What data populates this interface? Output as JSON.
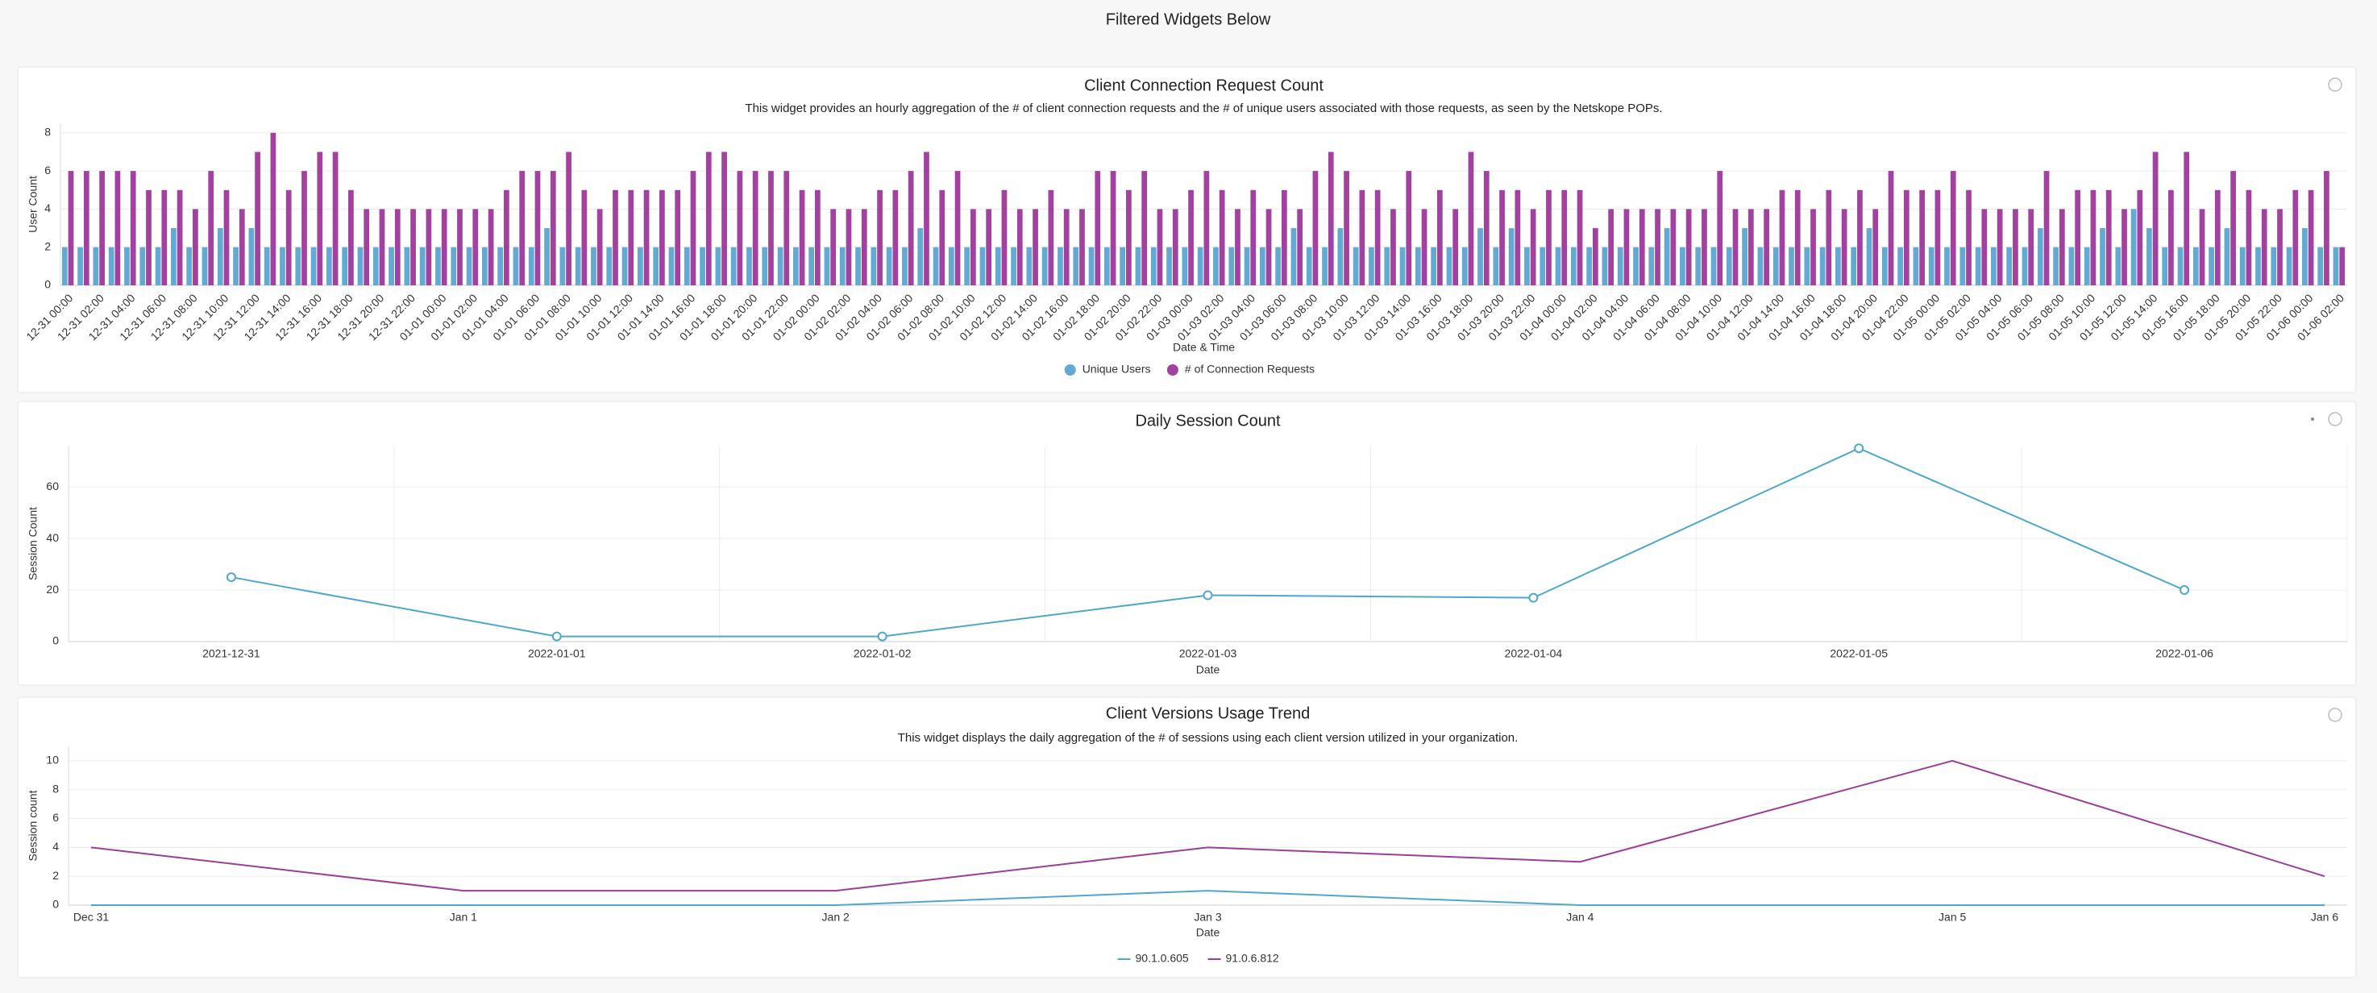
{
  "header": {
    "title": "Filtered Widgets Below"
  },
  "chart_data": [
    {
      "type": "bar",
      "title": "Client Connection Request Count",
      "subtitle": "This widget provides an hourly aggregation of the # of client connection requests and the # of unique users associated with those requests, as seen by the Netskope POPs.",
      "x_label": "Date & Time",
      "y_label": "User Count",
      "legend": "bottom",
      "grid": true,
      "categories": [
        "12-31 00:00",
        null,
        "12-31 02:00",
        null,
        "12-31 04:00",
        null,
        "12-31 06:00",
        null,
        "12-31 08:00",
        null,
        "12-31 10:00",
        null,
        "12-31 12:00",
        null,
        "12-31 14:00",
        null,
        "12-31 16:00",
        null,
        "12-31 18:00",
        null,
        "12-31 20:00",
        null,
        "12-31 22:00",
        null,
        "01-01 00:00",
        null,
        "01-01 02:00",
        null,
        "01-01 04:00",
        null,
        "01-01 06:00",
        null,
        "01-01 08:00",
        null,
        "01-01 10:00",
        null,
        "01-01 12:00",
        null,
        "01-01 14:00",
        null,
        "01-01 16:00",
        null,
        "01-01 18:00",
        null,
        "01-01 20:00",
        null,
        "01-01 22:00",
        null,
        "01-02 00:00",
        null,
        "01-02 02:00",
        null,
        "01-02 04:00",
        null,
        "01-02 06:00",
        null,
        "01-02 08:00",
        null,
        "01-02 10:00",
        null,
        "01-02 12:00",
        null,
        "01-02 14:00",
        null,
        "01-02 16:00",
        null,
        "01-02 18:00",
        null,
        "01-02 20:00",
        null,
        "01-02 22:00",
        null,
        "01-03 00:00",
        null,
        "01-03 02:00",
        null,
        "01-03 04:00",
        null,
        "01-03 06:00",
        null,
        "01-03 08:00",
        null,
        "01-03 10:00",
        null,
        "01-03 12:00",
        null,
        "01-03 14:00",
        null,
        "01-03 16:00",
        null,
        "01-03 18:00",
        null,
        "01-03 20:00",
        null,
        "01-03 22:00",
        null,
        "01-04 00:00",
        null,
        "01-04 02:00",
        null,
        "01-04 04:00",
        null,
        "01-04 06:00",
        null,
        "01-04 08:00",
        null,
        "01-04 10:00",
        null,
        "01-04 12:00",
        null,
        "01-04 14:00",
        null,
        "01-04 16:00",
        null,
        "01-04 18:00",
        null,
        "01-04 20:00",
        null,
        "01-04 22:00",
        null,
        "01-05 00:00",
        null,
        "01-05 02:00",
        null,
        "01-05 04:00",
        null,
        "01-05 06:00",
        null,
        "01-05 08:00",
        null,
        "01-05 10:00",
        null,
        "01-05 12:00",
        null,
        "01-05 14:00",
        null,
        "01-05 16:00",
        null,
        "01-05 18:00",
        null,
        "01-05 20:00",
        null,
        "01-05 22:00",
        null,
        "01-06 00:00",
        null,
        "01-06 02:00"
      ],
      "series": [
        {
          "name": "Unique Users",
          "color": "#62a9d3",
          "values": [
            2,
            2,
            2,
            2,
            2,
            2,
            2,
            3,
            2,
            2,
            3,
            2,
            3,
            2,
            2,
            2,
            2,
            2,
            2,
            2,
            2,
            2,
            2,
            2,
            2,
            2,
            2,
            2,
            2,
            2,
            2,
            3,
            2,
            2,
            2,
            2,
            2,
            2,
            2,
            2,
            2,
            2,
            2,
            2,
            2,
            2,
            2,
            2,
            2,
            2,
            2,
            2,
            2,
            2,
            2,
            3,
            2,
            2,
            2,
            2,
            2,
            2,
            2,
            2,
            2,
            2,
            2,
            2,
            2,
            2,
            2,
            2,
            2,
            2,
            2,
            2,
            2,
            2,
            2,
            3,
            2,
            2,
            3,
            2,
            2,
            2,
            2,
            2,
            2,
            2,
            2,
            3,
            2,
            3,
            2,
            2,
            2,
            2,
            2,
            2,
            2,
            2,
            2,
            3,
            2,
            2,
            2,
            2,
            3,
            2,
            2,
            2,
            2,
            2,
            2,
            2,
            3,
            2,
            2,
            2,
            2,
            2,
            2,
            2,
            2,
            2,
            2,
            3,
            2,
            2,
            2,
            3,
            2,
            4,
            3,
            2,
            2,
            2,
            2,
            3,
            2,
            2,
            2,
            2,
            3,
            2,
            2
          ]
        },
        {
          "name": "# of Connection Requests",
          "color": "#a2419f",
          "values": [
            6,
            6,
            6,
            6,
            6,
            5,
            5,
            5,
            4,
            6,
            5,
            4,
            7,
            8,
            5,
            6,
            7,
            7,
            5,
            4,
            4,
            4,
            4,
            4,
            4,
            4,
            4,
            4,
            5,
            6,
            6,
            6,
            7,
            5,
            4,
            5,
            5,
            5,
            5,
            5,
            6,
            7,
            7,
            6,
            6,
            6,
            6,
            5,
            5,
            4,
            4,
            4,
            5,
            5,
            6,
            7,
            5,
            6,
            4,
            4,
            5,
            4,
            4,
            5,
            4,
            4,
            6,
            6,
            5,
            6,
            4,
            4,
            5,
            6,
            5,
            4,
            5,
            4,
            5,
            4,
            6,
            7,
            6,
            5,
            5,
            4,
            6,
            4,
            5,
            4,
            7,
            6,
            5,
            5,
            4,
            5,
            5,
            5,
            3,
            4,
            4,
            4,
            4,
            4,
            4,
            4,
            6,
            4,
            4,
            4,
            5,
            5,
            4,
            5,
            4,
            5,
            4,
            6,
            5,
            5,
            5,
            6,
            5,
            4,
            4,
            4,
            4,
            6,
            4,
            5,
            5,
            5,
            4,
            5,
            7,
            5,
            7,
            4,
            5,
            6,
            5,
            4,
            4,
            5,
            5,
            6,
            2
          ]
        }
      ],
      "ylim": [
        0,
        8.5
      ],
      "yticks": [
        0,
        2,
        4,
        6,
        8
      ]
    },
    {
      "type": "line",
      "title": "Daily Session Count",
      "x_label": "Date",
      "y_label": "Session Count",
      "grid": true,
      "x_grid": true,
      "markers": true,
      "categories": [
        "2021-12-31",
        "2022-01-01",
        "2022-01-02",
        "2022-01-03",
        "2022-01-04",
        "2022-01-05",
        "2022-01-06"
      ],
      "values": [
        25,
        2,
        2,
        18,
        17,
        75,
        20
      ],
      "color": "#4fa8c9",
      "ylim": [
        0,
        76
      ],
      "yticks": [
        0,
        20,
        40,
        60
      ]
    },
    {
      "type": "line",
      "title": "Client Versions Usage Trend",
      "subtitle": "This widget displays the daily aggregation of the # of sessions using each client version utilized in your organization.",
      "x_label": "Date",
      "y_label": "Session count",
      "grid": true,
      "legend": "bottom",
      "categories": [
        "Dec 31",
        "Jan 1",
        "Jan 2",
        "Jan 3",
        "Jan 4",
        "Jan 5",
        "Jan 6"
      ],
      "series": [
        {
          "name": "90.1.0.605",
          "color": "#4fa8c9",
          "values": [
            0,
            0,
            0,
            1,
            0,
            0,
            0
          ]
        },
        {
          "name": "91.0.6.812",
          "color": "#9c3d9a",
          "values": [
            4,
            1,
            1,
            4,
            3,
            10,
            2
          ]
        }
      ],
      "ylim": [
        0,
        11
      ],
      "yticks": [
        0,
        2,
        4,
        6,
        8,
        10
      ]
    }
  ]
}
